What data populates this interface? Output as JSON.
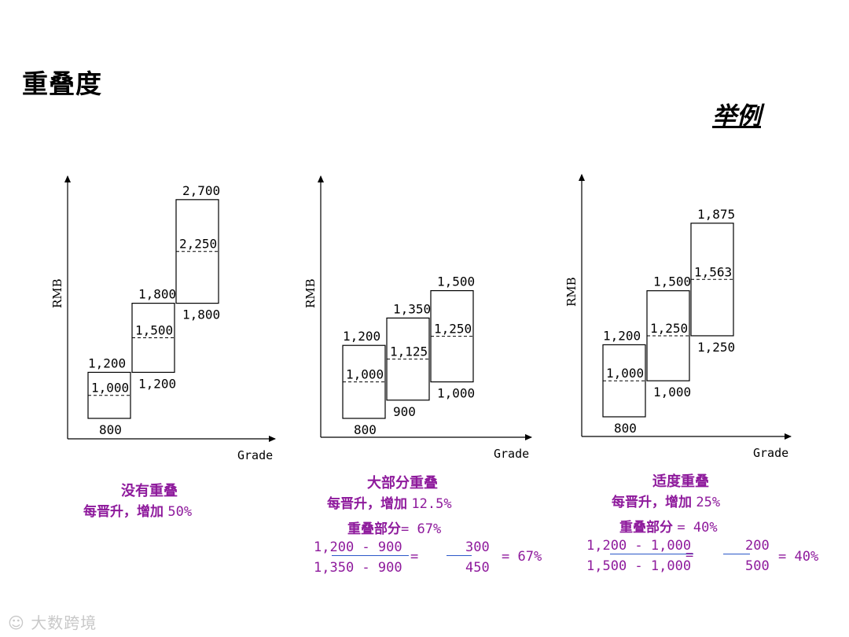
{
  "slide": {
    "title": "重叠度",
    "example_label": "举例",
    "watermark": "大数跨境"
  },
  "axis": {
    "x_label": "Grade",
    "y_label": "RMB"
  },
  "panels": [
    {
      "caption_title": "没有重叠",
      "caption_increase_label": "每晋升，增加",
      "caption_increase_value": "50%",
      "grades": [
        {
          "min": 800,
          "mid": 1000,
          "max": 1200,
          "min_label": "800",
          "mid_label": "1,000",
          "max_label": "1,200"
        },
        {
          "min": 1200,
          "mid": 1500,
          "max": 1800,
          "min_label": "1,200",
          "mid_label": "1,500",
          "max_label": "1,800"
        },
        {
          "min": 1800,
          "mid": 2250,
          "max": 2700,
          "min_label": "1,800",
          "mid_label": "2,250",
          "max_label": "2,700"
        }
      ]
    },
    {
      "caption_title": "大部分重叠",
      "caption_increase_label": "每晋升，增加",
      "caption_increase_value": "12.5%",
      "overlap_label": "重叠部分",
      "overlap_value": "= 67%",
      "formula_num": "1,200 - 900",
      "formula_den": "1,350 - 900",
      "formula_eq": "=",
      "frac_num": "300",
      "frac_den": "450",
      "formula_result": "= 67%",
      "grades": [
        {
          "min": 800,
          "mid": 1000,
          "max": 1200,
          "min_label": "800",
          "mid_label": "1,000",
          "max_label": "1,200"
        },
        {
          "min": 900,
          "mid": 1125,
          "max": 1350,
          "min_label": "900",
          "mid_label": "1,125",
          "max_label": "1,350"
        },
        {
          "min": 1000,
          "mid": 1250,
          "max": 1500,
          "min_label": "1,000",
          "mid_label": "1,250",
          "max_label": "1,500"
        }
      ]
    },
    {
      "caption_title": "适度重叠",
      "caption_increase_label": "每晋升，增加",
      "caption_increase_value": "25%",
      "overlap_label": "重叠部分",
      "overlap_value": "= 40%",
      "formula_num": "1,200 - 1,000",
      "formula_den": "1,500 - 1,000",
      "formula_eq": "=",
      "frac_num": "200",
      "frac_den": "500",
      "formula_result": "= 40%",
      "grades": [
        {
          "min": 800,
          "mid": 1000,
          "max": 1200,
          "min_label": "800",
          "mid_label": "1,000",
          "max_label": "1,200"
        },
        {
          "min": 1000,
          "mid": 1250,
          "max": 1500,
          "min_label": "1,000",
          "mid_label": "1,250",
          "max_label": "1,500"
        },
        {
          "min": 1250,
          "mid": 1563,
          "max": 1875,
          "min_label": "1,250",
          "mid_label": "1,563",
          "max_label": "1,875"
        }
      ]
    }
  ],
  "colors": {
    "caption": "#8e1a9c",
    "formula_line": "#2a58c8"
  }
}
